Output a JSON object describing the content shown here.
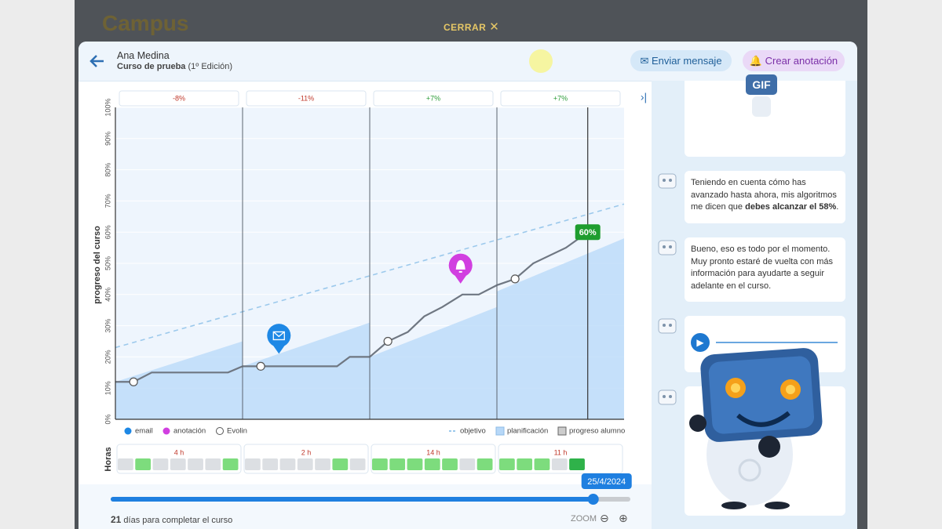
{
  "app": {
    "logo": "Campus",
    "close": "CERRAR"
  },
  "header": {
    "student": "Ana Medina",
    "course": "Curso de prueba",
    "edition": "(1º Edición)",
    "send_message": "Enviar mensaje",
    "create_note": "Crear anotación"
  },
  "chart_data": {
    "type": "line",
    "y_label": "progreso del curso",
    "xlim": [
      0,
      28
    ],
    "ylim": [
      0,
      100
    ],
    "yticks": [
      {
        "value": 0,
        "label": "0%"
      },
      {
        "value": 10,
        "label": "10%"
      },
      {
        "value": 20,
        "label": "20%"
      },
      {
        "value": 30,
        "label": "30%"
      },
      {
        "value": 40,
        "label": "40%"
      },
      {
        "value": 50,
        "label": "50%"
      },
      {
        "value": 60,
        "label": "60%"
      },
      {
        "value": 70,
        "label": "70%"
      },
      {
        "value": 80,
        "label": "80%"
      },
      {
        "value": 90,
        "label": "90%"
      },
      {
        "value": 100,
        "label": "100%"
      }
    ],
    "period_bounds": [
      0,
      7,
      14,
      21,
      28
    ],
    "period_labels": [
      "-8%",
      "-11%",
      "+7%",
      "+7%"
    ],
    "period_colors": [
      "#c0392b",
      "#c0392b",
      "#2e9d3a",
      "#2e9d3a"
    ],
    "current": {
      "x": 26,
      "value": 60,
      "label": "60%",
      "color": "#1f9d2f"
    },
    "series": [
      {
        "name": "objetivo",
        "color": "#9cc9ec",
        "style": "dashed",
        "x": [
          0,
          28
        ],
        "values": [
          23,
          69
        ]
      },
      {
        "name": "planificación",
        "color": "#b7d8f8",
        "style": "area",
        "x": [
          0,
          7,
          7,
          14,
          14,
          21,
          21,
          28
        ],
        "values": [
          12,
          25,
          17,
          31,
          20,
          36,
          41,
          58
        ]
      },
      {
        "name": "progreso alumno",
        "color": "#6f7782",
        "style": "line",
        "x": [
          0,
          1,
          2,
          6.2,
          7,
          8,
          12.2,
          12.9,
          14,
          15,
          16.1,
          17,
          18,
          19.1,
          20,
          21,
          22,
          23,
          24.8,
          26
        ],
        "values": [
          12,
          12,
          15,
          15,
          17,
          17,
          17,
          20,
          20,
          25,
          28,
          33,
          36,
          40,
          40,
          43,
          45,
          50,
          55,
          60
        ]
      }
    ],
    "events": [
      {
        "name": "email",
        "color": "#1e88e5",
        "x": [
          9
        ],
        "values": [
          21
        ]
      },
      {
        "name": "anotación",
        "color": "#d13fe0",
        "x": [
          19
        ],
        "values": [
          43.5
        ]
      },
      {
        "name": "Evolin",
        "color": "#ffffff",
        "x": [
          1,
          8,
          15,
          22
        ],
        "values": [
          12,
          17,
          25,
          45
        ]
      }
    ]
  },
  "hours": {
    "label": "Horas",
    "active_color": "#7ddc7d",
    "idle_color": "#dcdfe3",
    "today_color": "#2fb24a",
    "periods": [
      {
        "label": "4 h",
        "days": [
          0,
          1,
          0,
          0,
          0,
          0,
          1
        ]
      },
      {
        "label": "2 h",
        "days": [
          0,
          0,
          0,
          0,
          0,
          1,
          0
        ]
      },
      {
        "label": "14 h",
        "days": [
          1,
          1,
          1,
          1,
          1,
          0,
          1
        ]
      },
      {
        "label": "11 h",
        "days": [
          1,
          1,
          1,
          0,
          1
        ]
      }
    ]
  },
  "slider": {
    "date": "25/4/2024"
  },
  "footer": {
    "days_left": 21,
    "days_text": "días para completar el curso",
    "zoom": "ZOOM"
  },
  "chat": {
    "gif": "GIF",
    "messages": [
      {
        "text": "Teniendo en cuenta cómo has avanzado hasta ahora, mis algoritmos me dicen que ",
        "bold": "debes alcanzar el 58%",
        "after": "."
      },
      {
        "text": "Bueno, eso es todo por el momento. Muy pronto estaré de vuelta con más información para ayudarte a seguir adelante en el curso."
      }
    ]
  }
}
